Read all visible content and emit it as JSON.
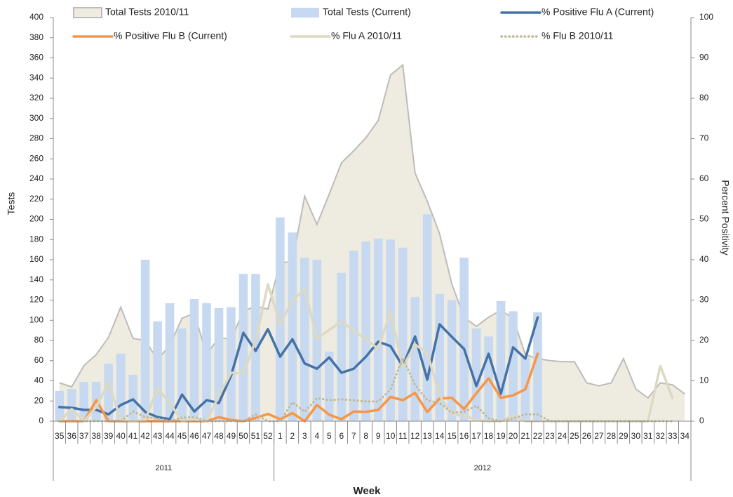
{
  "chart_data": {
    "type": "combo",
    "x_label": "Week",
    "y_label": "Tests",
    "y2_label": "Percent Positivity",
    "categories": [
      35,
      36,
      37,
      38,
      39,
      40,
      41,
      42,
      43,
      44,
      45,
      46,
      47,
      48,
      49,
      50,
      51,
      52,
      1,
      2,
      3,
      4,
      5,
      6,
      7,
      8,
      9,
      10,
      11,
      12,
      13,
      14,
      15,
      16,
      17,
      18,
      19,
      20,
      21,
      22,
      23,
      24,
      25,
      26,
      27,
      28,
      29,
      30,
      31,
      32,
      33,
      34
    ],
    "groups": [
      "2011",
      "2012"
    ],
    "ylim": [
      0,
      400
    ],
    "yticks": [
      0,
      20,
      40,
      60,
      80,
      100,
      120,
      140,
      160,
      180,
      200,
      220,
      240,
      260,
      280,
      300,
      320,
      340,
      360,
      380,
      400
    ],
    "y2lim": [
      0,
      100
    ],
    "y2ticks": [
      0,
      10,
      20,
      30,
      40,
      50,
      60,
      70,
      80,
      90,
      100
    ],
    "grid": false,
    "series": [
      {
        "name": "Total Tests 2010/11",
        "type": "area",
        "axis": "y",
        "color": "#eeebe1",
        "stroke": "#bdbcb8",
        "values": [
          38,
          34,
          55,
          66,
          83,
          113,
          82,
          80,
          61,
          75,
          102,
          107,
          66,
          83,
          81,
          109,
          114,
          111,
          157,
          158,
          223,
          195,
          225,
          256,
          268,
          281,
          298,
          343,
          353,
          246,
          218,
          186,
          136,
          103,
          94,
          103,
          110,
          102,
          66,
          62,
          60,
          59,
          59,
          38,
          35,
          38,
          62,
          32,
          23,
          38,
          36,
          27
        ]
      },
      {
        "name": "Total Tests (Current)",
        "type": "bar",
        "axis": "y",
        "color": "#c6d9f1",
        "values": [
          30,
          32,
          39,
          39,
          57,
          67,
          46,
          160,
          99,
          117,
          92,
          121,
          117,
          112,
          113,
          146,
          146,
          null,
          202,
          187,
          162,
          160,
          69,
          147,
          169,
          178,
          181,
          180,
          172,
          123,
          205,
          126,
          120,
          162,
          92,
          84,
          119,
          109,
          63,
          108,
          null,
          null,
          null,
          null,
          null,
          null,
          null,
          null,
          null,
          null,
          null,
          null
        ]
      },
      {
        "name": "% Positive Flu A (Current)",
        "type": "line",
        "axis": "y2",
        "color": "#4572a7",
        "style": "solid",
        "values": [
          3.5,
          3.3,
          2.8,
          2.8,
          1.7,
          4.0,
          5.4,
          2.3,
          1.0,
          0.5,
          6.6,
          2.4,
          5.2,
          4.5,
          11.3,
          21.9,
          17.4,
          22.8,
          16.0,
          20.3,
          14.3,
          13.0,
          15.8,
          12.0,
          13.0,
          16.0,
          19.7,
          18.6,
          13.6,
          21.0,
          10.3,
          24.0,
          20.9,
          17.9,
          8.7,
          16.7,
          6.8,
          18.3,
          15.5,
          25.7,
          null,
          null,
          null,
          null,
          null,
          null,
          null,
          null,
          null,
          null,
          null,
          null
        ]
      },
      {
        "name": "% Positive Flu B (Current)",
        "type": "line",
        "axis": "y2",
        "color": "#f79646",
        "style": "solid",
        "values": [
          0,
          0,
          0,
          5.2,
          0,
          0,
          0,
          0,
          0,
          0,
          0,
          0,
          0,
          1.0,
          0.3,
          0,
          0.8,
          1.8,
          0.5,
          2.0,
          0,
          4.0,
          1.6,
          0.5,
          2.4,
          2.3,
          2.8,
          6.0,
          5.2,
          7.0,
          2.3,
          5.6,
          5.8,
          3.0,
          6.9,
          10.6,
          5.8,
          6.4,
          7.9,
          16.7,
          null,
          null,
          null,
          null,
          null,
          null,
          null,
          null,
          null,
          null,
          null,
          null
        ]
      },
      {
        "name": "% Flu A 2010/11",
        "type": "line",
        "axis": "y2",
        "color": "#ddd9c3",
        "style": "solid",
        "values": [
          0,
          3.0,
          0,
          3.5,
          9.6,
          0.3,
          0,
          0.3,
          8.2,
          4.5,
          0,
          0.5,
          0,
          6.3,
          12.0,
          11.8,
          20.0,
          33.9,
          24.0,
          29.9,
          32.7,
          20.5,
          22.6,
          24.7,
          22.4,
          20.3,
          17.9,
          27.1,
          13.4,
          19.0,
          16.9,
          6.4,
          1.6,
          1.4,
          0.3,
          0,
          0,
          1.4,
          0,
          0,
          0,
          0,
          0,
          0,
          0,
          0,
          0,
          0,
          0,
          13.7,
          5.7,
          null
        ]
      },
      {
        "name": "% Flu B 2010/11",
        "type": "line",
        "axis": "y2",
        "color": "#c4b898",
        "style": "dotted",
        "values": [
          0,
          0,
          0,
          0,
          0,
          0,
          2.4,
          1.0,
          0.7,
          0,
          0.9,
          1.0,
          0,
          0,
          0,
          0,
          1.7,
          0,
          0,
          4.7,
          2.3,
          5.7,
          5.2,
          5.4,
          5.2,
          4.9,
          4.9,
          7.8,
          15.7,
          9.0,
          5.2,
          4.5,
          2.1,
          2.3,
          3.8,
          0.7,
          0,
          0.7,
          1.7,
          1.7,
          0,
          0,
          0,
          0,
          0,
          0,
          0,
          0,
          0,
          0,
          0,
          null
        ]
      }
    ]
  }
}
